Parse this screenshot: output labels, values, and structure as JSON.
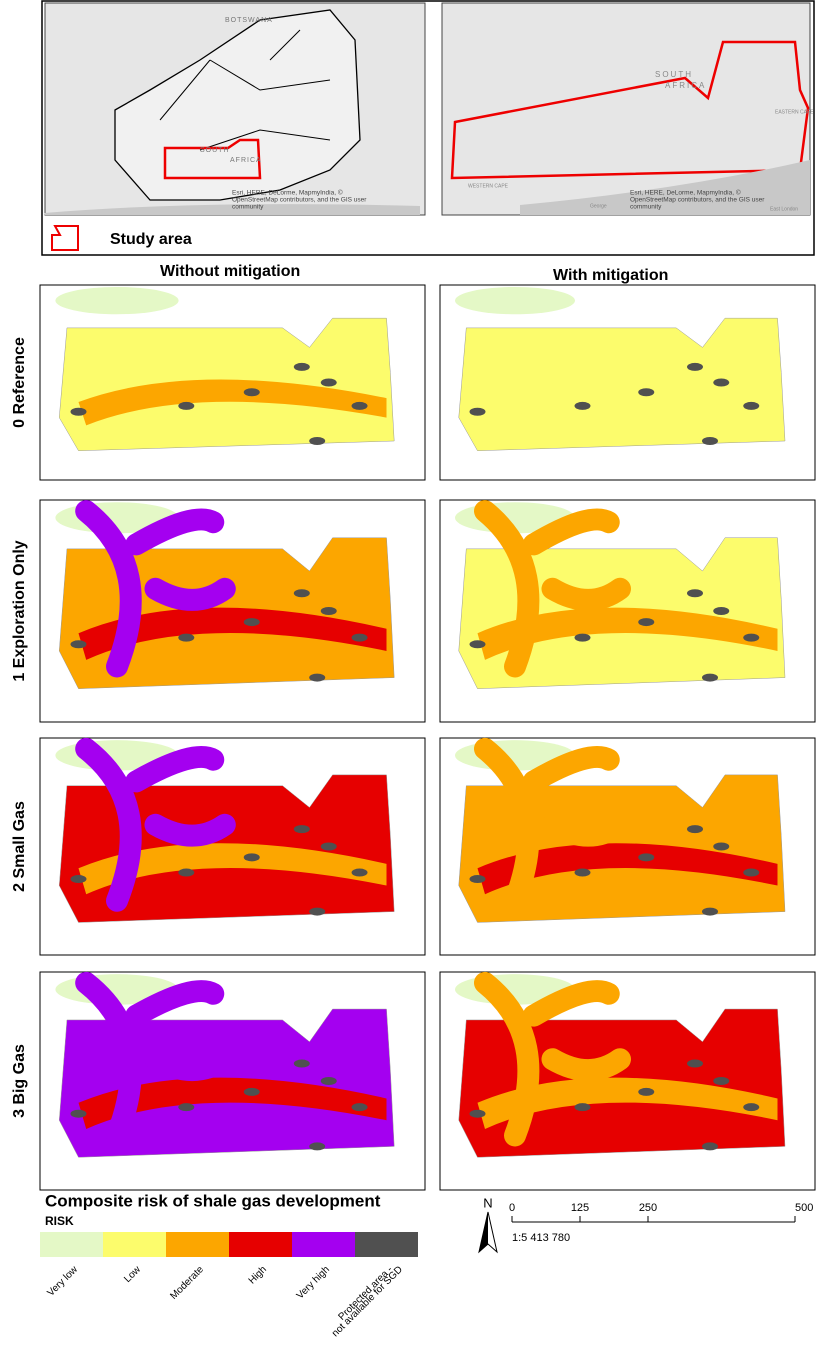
{
  "overview": {
    "left_labels": [
      "BOTSWANA",
      "SOUTH",
      "AFRICA"
    ],
    "right_labels": [
      "SOUTH",
      "AFRICA",
      "WESTERN CAPE",
      "EASTERN CAPE",
      "George",
      "East London"
    ],
    "attribution": [
      "Esri, HERE, DeLorme, MapmyIndia, ©",
      "OpenStreetMap contributors, and the GIS user",
      "community"
    ],
    "study_area": "Study area"
  },
  "columns": [
    "Without mitigation",
    "With mitigation"
  ],
  "rows": [
    "0 Reference",
    "1 Exploration Only",
    "2 Small Gas",
    "3 Big Gas"
  ],
  "legend": {
    "title": "Composite risk of shale gas development",
    "heading": "RISK",
    "classes": [
      {
        "label": [
          "Very low"
        ],
        "color": "#e4f8c6"
      },
      {
        "label": [
          "Low"
        ],
        "color": "#fcfc6c"
      },
      {
        "label": [
          "Moderate"
        ],
        "color": "#fca600"
      },
      {
        "label": [
          "High"
        ],
        "color": "#e60000"
      },
      {
        "label": [
          "Very high"
        ],
        "color": "#a400f0"
      },
      {
        "label": [
          "Protected area -",
          "not available for SGD"
        ],
        "color": "#505050"
      }
    ]
  },
  "scale": {
    "north": "N",
    "ticks": [
      "0",
      "125",
      "250",
      "500 km"
    ],
    "ratio": "1:5 413 780"
  }
}
